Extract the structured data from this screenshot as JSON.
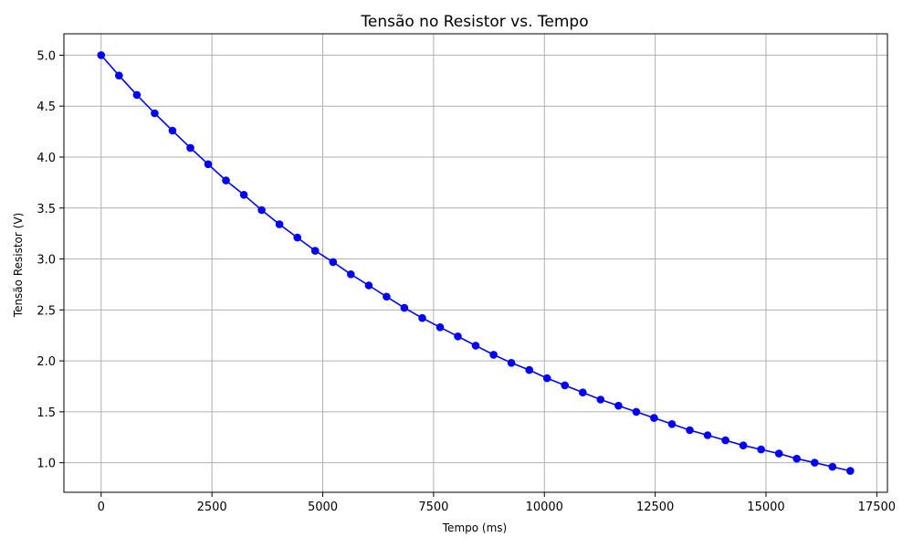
{
  "chart_data": {
    "type": "line",
    "title": "Tensão no Resistor vs. Tempo",
    "xlabel": "Tempo (ms)",
    "ylabel": "Tensão Resistor (V)",
    "xlim": [
      -840,
      17740
    ],
    "ylim": [
      0.71,
      5.21
    ],
    "xticks": [
      0,
      2500,
      5000,
      7500,
      10000,
      12500,
      15000,
      17500
    ],
    "xtick_labels": [
      "0",
      "2500",
      "5000",
      "7500",
      "10000",
      "12500",
      "15000",
      "17500"
    ],
    "yticks": [
      1.0,
      1.5,
      2.0,
      2.5,
      3.0,
      3.5,
      4.0,
      4.5,
      5.0
    ],
    "ytick_labels": [
      "1.0",
      "1.5",
      "2.0",
      "2.5",
      "3.0",
      "3.5",
      "4.0",
      "4.5",
      "5.0"
    ],
    "grid": true,
    "series": [
      {
        "color": "#0000ff",
        "marker": "circle",
        "x": [
          0,
          402,
          805,
          1207,
          1610,
          2012,
          2415,
          2817,
          3220,
          3622,
          4024,
          4427,
          4829,
          5232,
          5634,
          6037,
          6439,
          6841,
          7244,
          7646,
          8049,
          8451,
          8854,
          9256,
          9659,
          10061,
          10463,
          10866,
          11268,
          11671,
          12073,
          12476,
          12878,
          13280,
          13683,
          14085,
          14488,
          14890,
          15293,
          15695,
          16098,
          16500,
          16902
        ],
        "y": [
          5.0,
          4.8,
          4.61,
          4.43,
          4.26,
          4.09,
          3.93,
          3.77,
          3.63,
          3.48,
          3.34,
          3.21,
          3.08,
          2.97,
          2.85,
          2.74,
          2.63,
          2.52,
          2.42,
          2.33,
          2.24,
          2.15,
          2.06,
          1.98,
          1.91,
          1.83,
          1.76,
          1.69,
          1.62,
          1.56,
          1.5,
          1.44,
          1.38,
          1.32,
          1.27,
          1.22,
          1.17,
          1.13,
          1.09,
          1.04,
          1.0,
          0.96,
          0.92
        ]
      }
    ]
  }
}
